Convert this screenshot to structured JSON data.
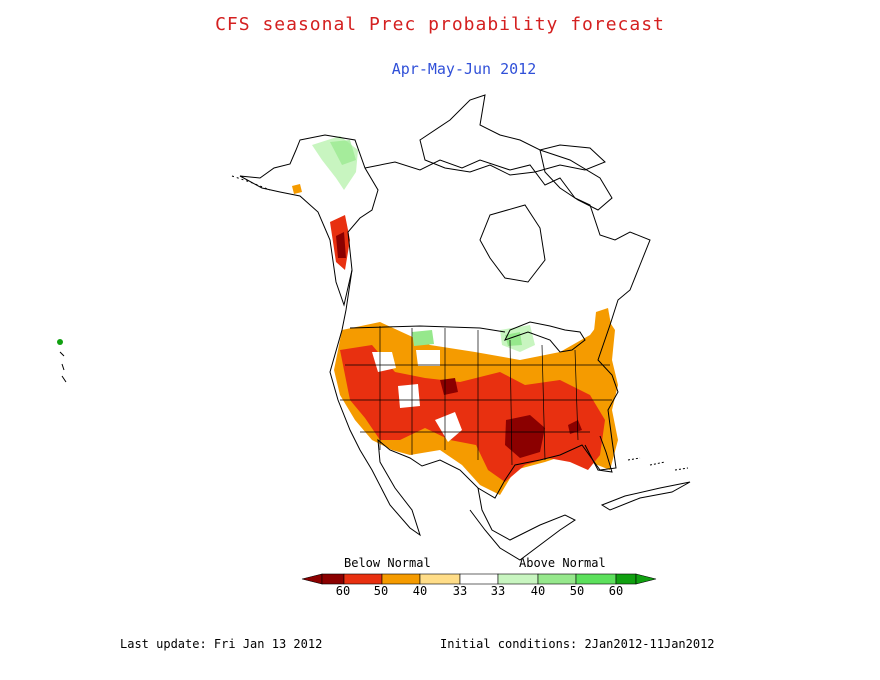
{
  "title": "CFS seasonal Prec probability forecast",
  "subtitle": "Apr-May-Jun 2012",
  "legend": {
    "below_label": "Below Normal",
    "above_label": "Above Normal",
    "ticks": [
      "60",
      "50",
      "40",
      "33",
      "33",
      "40",
      "50",
      "60"
    ],
    "colors": {
      "below_60": "#8b0000",
      "below_50": "#e83010",
      "below_40": "#f59b00",
      "below_33": "#ffdd88",
      "normal": "#ffffff",
      "above_33": "#c8f5c0",
      "above_40": "#96e88c",
      "above_50": "#5ce05c",
      "above_60": "#10a010"
    }
  },
  "footer": {
    "last_update": "Last update: Fri Jan 13 2012",
    "initial_conditions": "Initial conditions: 2Jan2012-11Jan2012"
  }
}
